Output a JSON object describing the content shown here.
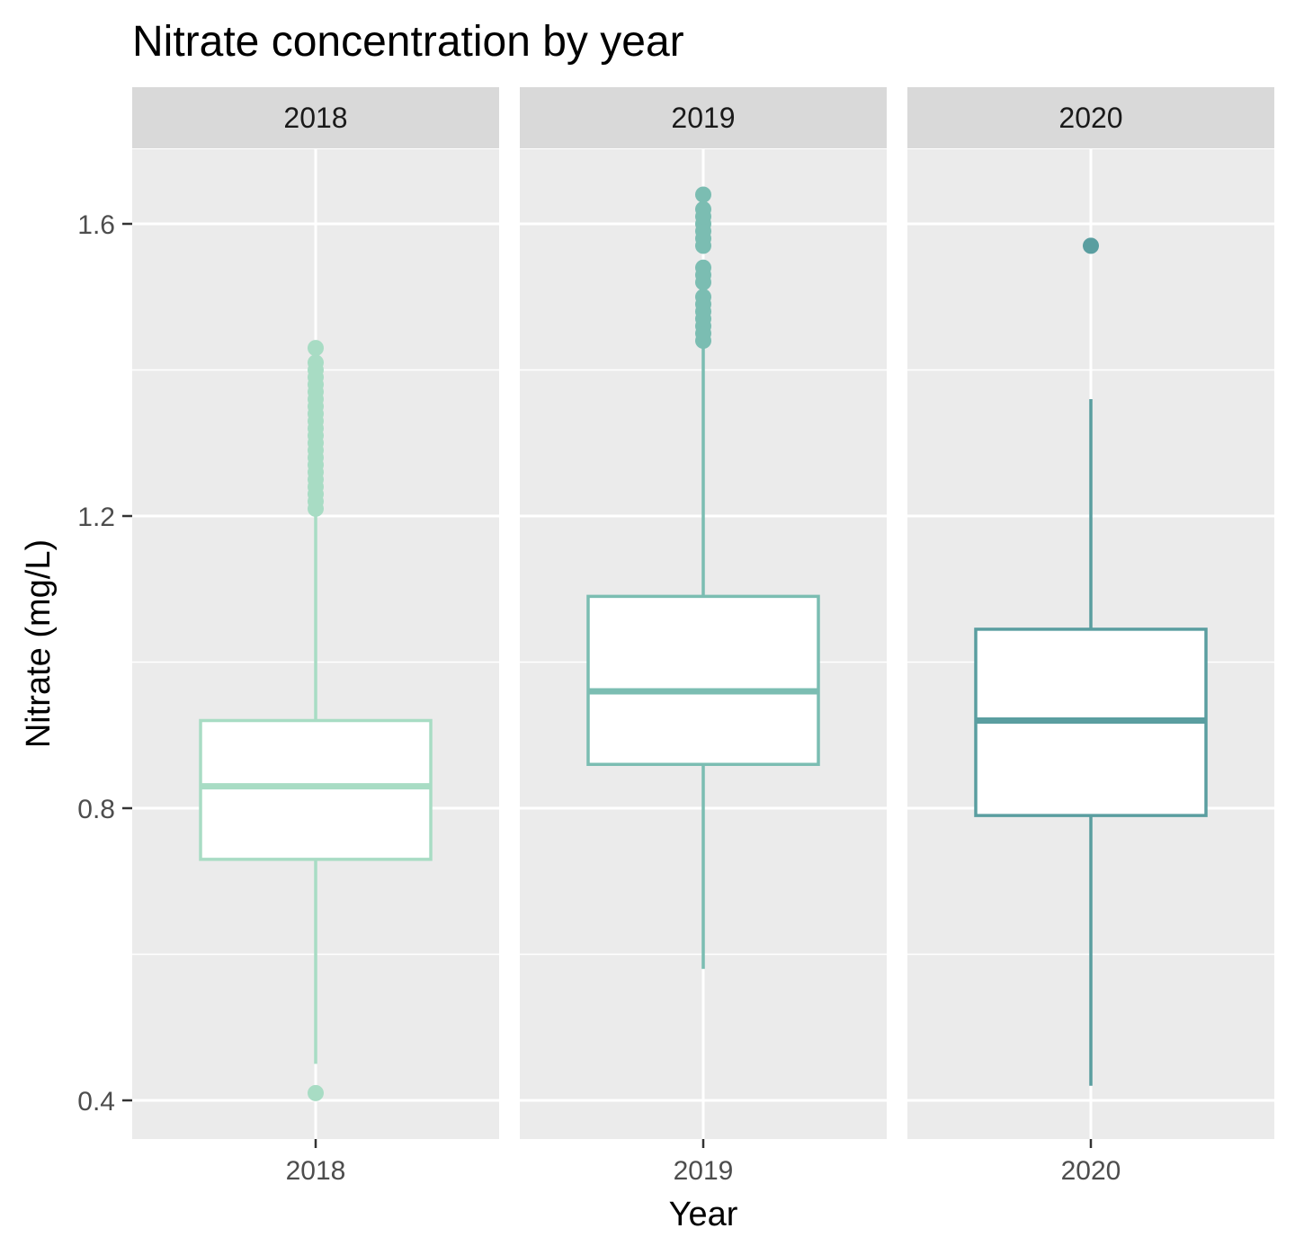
{
  "chart_data": {
    "type": "box",
    "title": "Nitrate concentration by year",
    "xlabel": "Year",
    "ylabel": "Nitrate (mg/L)",
    "ylim": [
      0.35,
      1.72
    ],
    "yticks": [
      0.4,
      0.8,
      1.2,
      1.6
    ],
    "ytick_labels": [
      "0.4",
      "0.8",
      "1.2",
      "1.6"
    ],
    "y_minor_breaks": [
      0.6,
      1.0,
      1.4
    ],
    "grid": true,
    "legend": "none",
    "facets": [
      {
        "strip": "2018",
        "xtick": "2018",
        "color": "#a8dcc4",
        "whisker_low": 0.45,
        "q1": 0.73,
        "median": 0.83,
        "q3": 0.92,
        "whisker_high": 1.2,
        "outliers": [
          0.41,
          1.21,
          1.22,
          1.23,
          1.24,
          1.25,
          1.26,
          1.27,
          1.28,
          1.29,
          1.3,
          1.31,
          1.32,
          1.33,
          1.34,
          1.35,
          1.36,
          1.37,
          1.38,
          1.39,
          1.4,
          1.41,
          1.43
        ]
      },
      {
        "strip": "2019",
        "xtick": "2019",
        "color": "#7bbdb2",
        "whisker_low": 0.58,
        "q1": 0.86,
        "median": 0.96,
        "q3": 1.09,
        "whisker_high": 1.44,
        "outliers": [
          1.44,
          1.45,
          1.46,
          1.47,
          1.48,
          1.49,
          1.5,
          1.52,
          1.53,
          1.54,
          1.57,
          1.58,
          1.59,
          1.6,
          1.61,
          1.62,
          1.64
        ]
      },
      {
        "strip": "2020",
        "xtick": "2020",
        "color": "#5a9ea0",
        "whisker_low": 0.42,
        "q1": 0.79,
        "median": 0.92,
        "q3": 1.045,
        "whisker_high": 1.36,
        "outliers": [
          1.57
        ]
      }
    ]
  }
}
